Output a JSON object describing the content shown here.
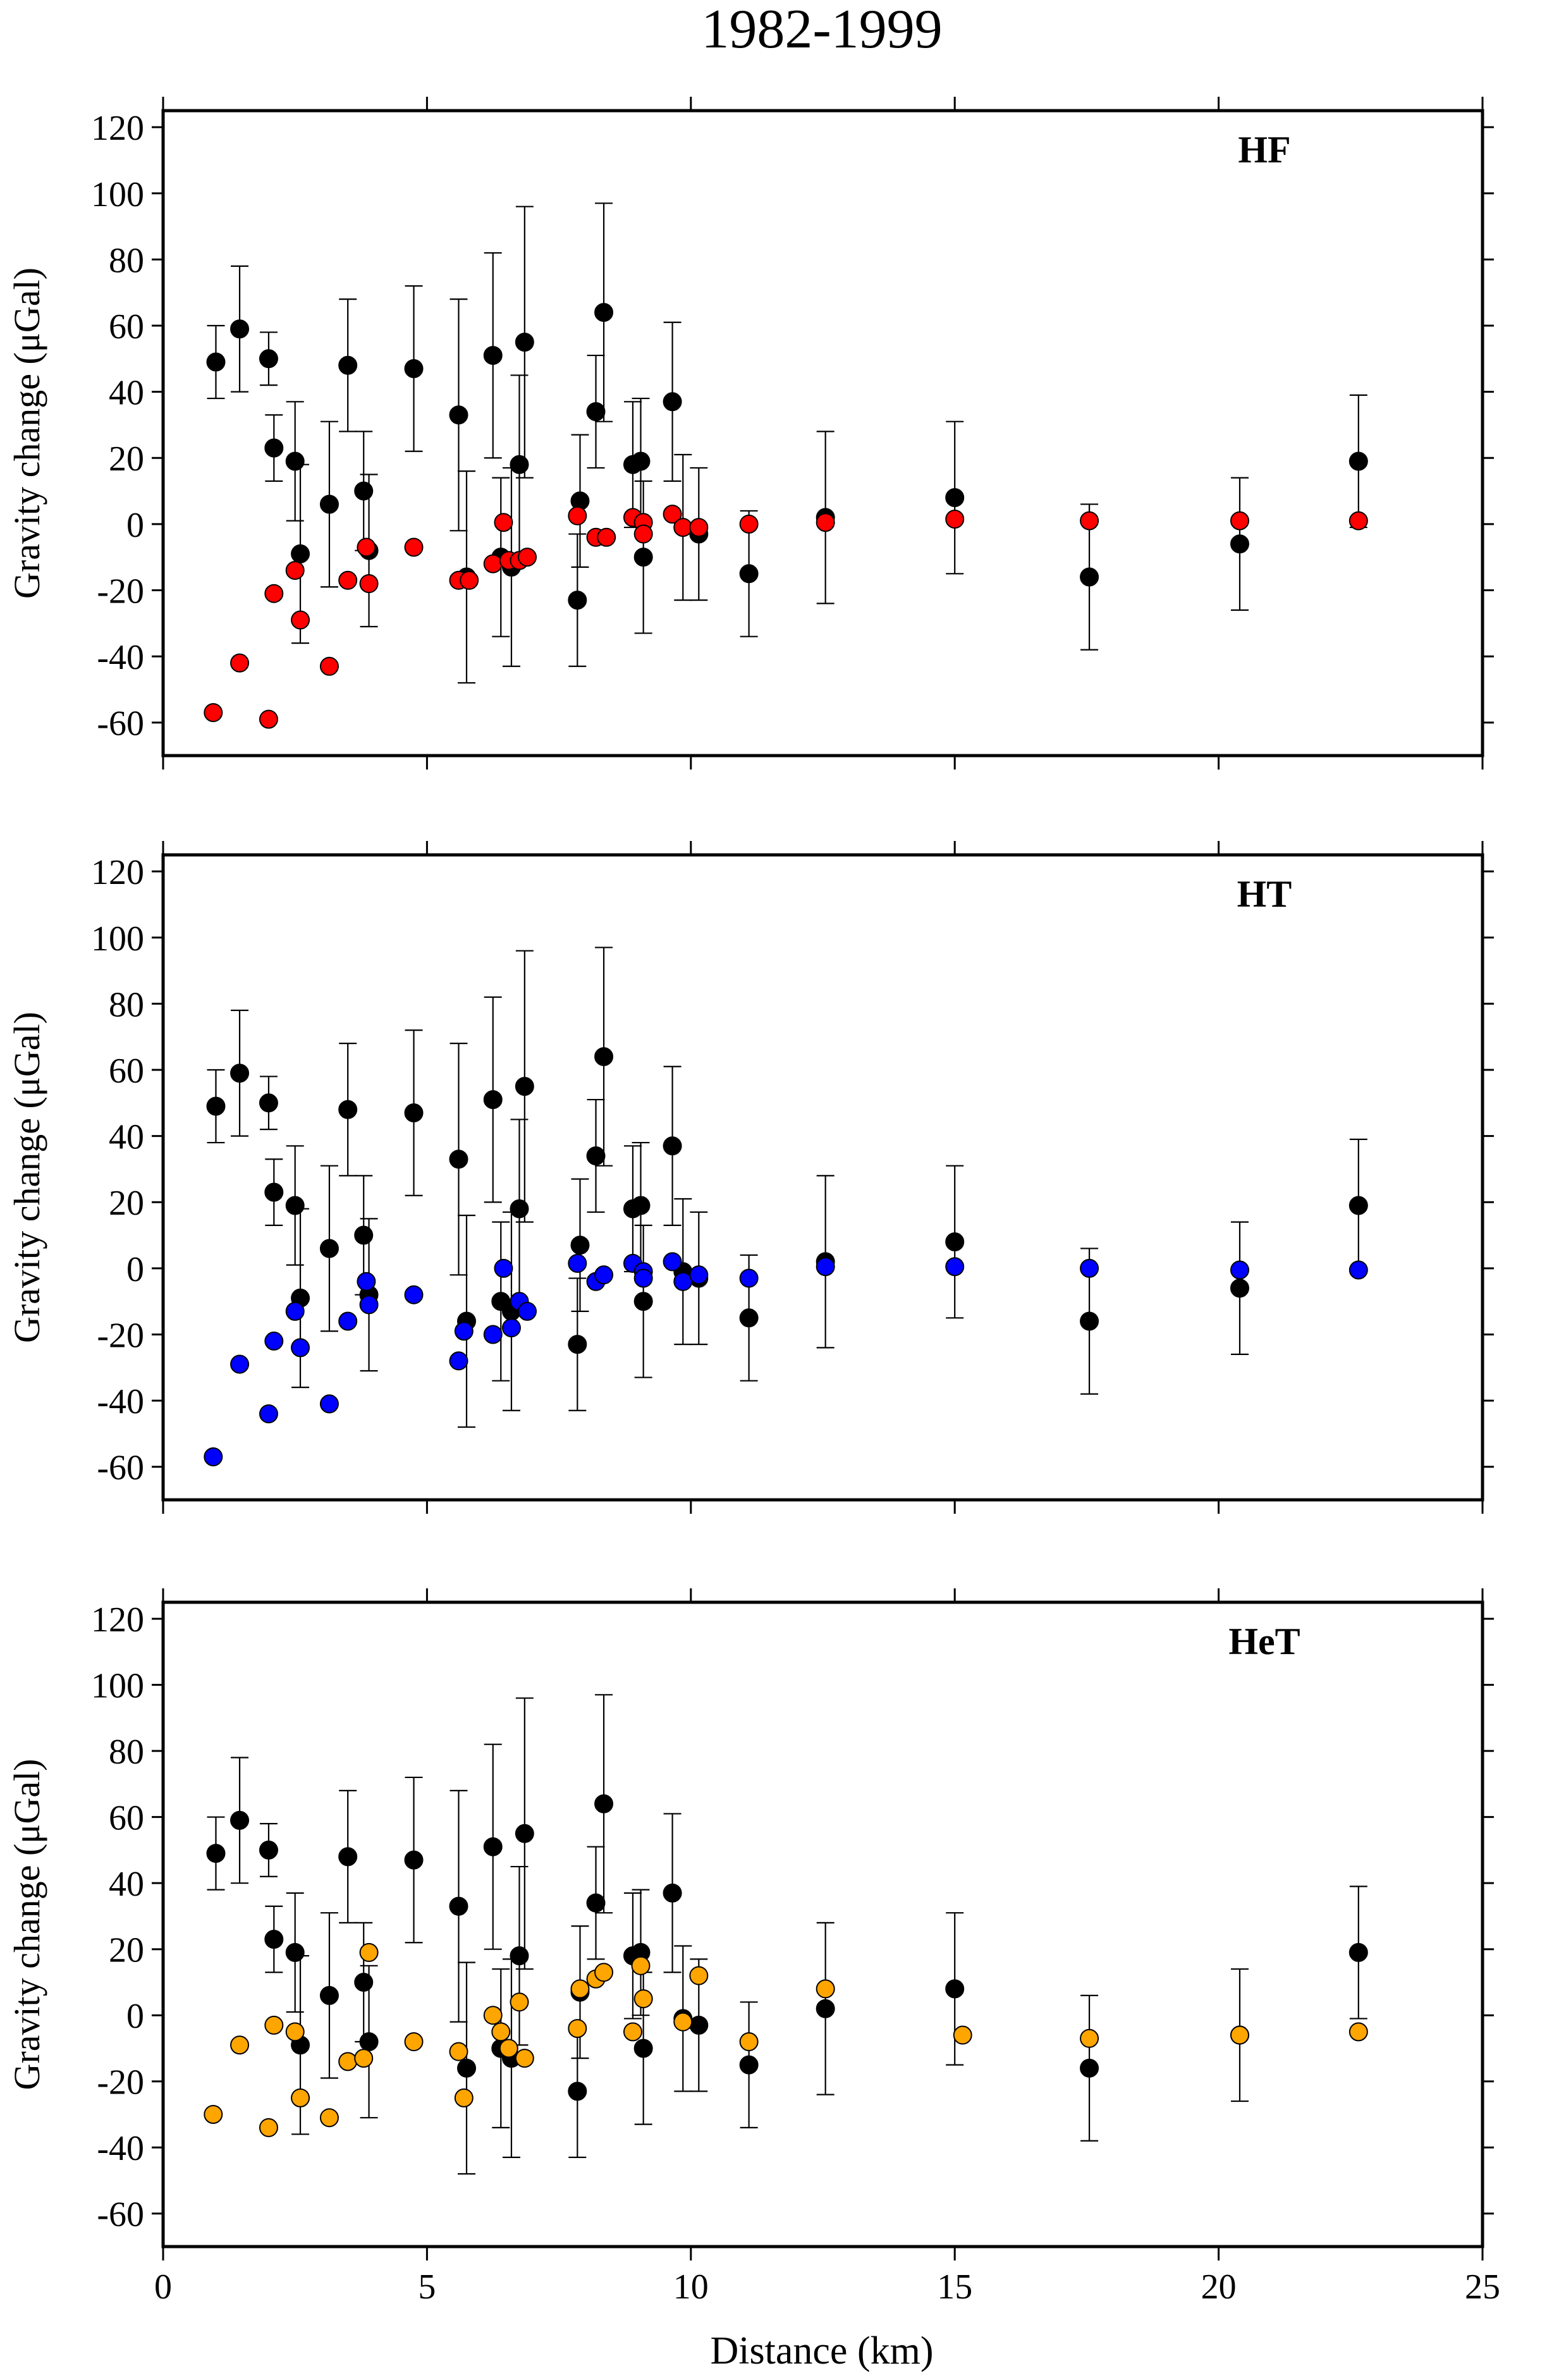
{
  "figure_title": "1982-1999",
  "colors": {
    "observed": "#000000",
    "HF": "#ff0000",
    "HT": "#0000ff",
    "HeT": "#ffa500"
  },
  "chart_data": {
    "type": "scatter",
    "title": "1982-1999",
    "xlabel": "Distance (km)",
    "ylabel": "Gravity change (μGal)",
    "xlim": [
      0,
      25
    ],
    "ylim": [
      -70,
      125
    ],
    "x_ticks": [
      0,
      5,
      10,
      15,
      20,
      25
    ],
    "y_ticks": [
      -60,
      -40,
      -20,
      0,
      20,
      40,
      60,
      80,
      100,
      120
    ],
    "grid": false,
    "observed": [
      {
        "x": 1.0,
        "y": 49,
        "lo": 38,
        "hi": 60
      },
      {
        "x": 1.45,
        "y": 59,
        "lo": 40,
        "hi": 78
      },
      {
        "x": 2.0,
        "y": 50,
        "lo": 42,
        "hi": 58
      },
      {
        "x": 2.1,
        "y": 23,
        "lo": 13,
        "hi": 33
      },
      {
        "x": 2.5,
        "y": 19,
        "lo": 1,
        "hi": 37
      },
      {
        "x": 2.6,
        "y": -9,
        "lo": -36,
        "hi": 18
      },
      {
        "x": 3.15,
        "y": 6,
        "lo": -19,
        "hi": 31
      },
      {
        "x": 3.5,
        "y": 48,
        "lo": 28,
        "hi": 68
      },
      {
        "x": 3.8,
        "y": 10,
        "lo": -8,
        "hi": 28
      },
      {
        "x": 3.9,
        "y": -8,
        "lo": -31,
        "hi": 15
      },
      {
        "x": 4.75,
        "y": 47,
        "lo": 22,
        "hi": 72
      },
      {
        "x": 5.6,
        "y": 33,
        "lo": -2,
        "hi": 68
      },
      {
        "x": 5.75,
        "y": -16,
        "lo": -48,
        "hi": 16
      },
      {
        "x": 6.25,
        "y": 51,
        "lo": 20,
        "hi": 82
      },
      {
        "x": 6.4,
        "y": -10,
        "lo": -34,
        "hi": 14
      },
      {
        "x": 6.6,
        "y": -13,
        "lo": -43,
        "hi": 17
      },
      {
        "x": 6.75,
        "y": 18,
        "lo": -9,
        "hi": 45
      },
      {
        "x": 6.85,
        "y": 55,
        "lo": 14,
        "hi": 96
      },
      {
        "x": 7.85,
        "y": -23,
        "lo": -43,
        "hi": -3
      },
      {
        "x": 7.9,
        "y": 7,
        "lo": -13,
        "hi": 27
      },
      {
        "x": 8.2,
        "y": 34,
        "lo": 17,
        "hi": 51
      },
      {
        "x": 8.35,
        "y": 64,
        "lo": 31,
        "hi": 97
      },
      {
        "x": 8.9,
        "y": 18,
        "lo": -1,
        "hi": 37
      },
      {
        "x": 9.05,
        "y": 19,
        "lo": 0,
        "hi": 38
      },
      {
        "x": 9.1,
        "y": -10,
        "lo": -33,
        "hi": 13
      },
      {
        "x": 9.65,
        "y": 37,
        "lo": 13,
        "hi": 61
      },
      {
        "x": 9.85,
        "y": -1,
        "lo": -23,
        "hi": 21
      },
      {
        "x": 10.15,
        "y": -3,
        "lo": -23,
        "hi": 17
      },
      {
        "x": 11.1,
        "y": -15,
        "lo": -34,
        "hi": 4
      },
      {
        "x": 12.55,
        "y": 2,
        "lo": -24,
        "hi": 28
      },
      {
        "x": 15.0,
        "y": 8,
        "lo": -15,
        "hi": 31
      },
      {
        "x": 17.55,
        "y": -16,
        "lo": -38,
        "hi": 6
      },
      {
        "x": 20.4,
        "y": -6,
        "lo": -26,
        "hi": 14
      },
      {
        "x": 22.65,
        "y": 19,
        "lo": -1,
        "hi": 39
      }
    ],
    "panels": [
      {
        "label": "HF",
        "color": "#ff0000",
        "points": [
          {
            "x": 0.95,
            "y": -57
          },
          {
            "x": 1.45,
            "y": -42
          },
          {
            "x": 2.0,
            "y": -59
          },
          {
            "x": 2.1,
            "y": -21
          },
          {
            "x": 2.5,
            "y": -14
          },
          {
            "x": 2.6,
            "y": -29
          },
          {
            "x": 3.15,
            "y": -43
          },
          {
            "x": 3.5,
            "y": -17
          },
          {
            "x": 3.85,
            "y": -7
          },
          {
            "x": 3.9,
            "y": -18
          },
          {
            "x": 4.75,
            "y": -7
          },
          {
            "x": 5.6,
            "y": -17
          },
          {
            "x": 5.8,
            "y": -17
          },
          {
            "x": 6.25,
            "y": -12
          },
          {
            "x": 6.45,
            "y": 0.5
          },
          {
            "x": 6.55,
            "y": -11
          },
          {
            "x": 6.75,
            "y": -11
          },
          {
            "x": 6.9,
            "y": -10
          },
          {
            "x": 7.85,
            "y": 2.5
          },
          {
            "x": 8.2,
            "y": -4
          },
          {
            "x": 8.4,
            "y": -4
          },
          {
            "x": 8.9,
            "y": 2
          },
          {
            "x": 9.1,
            "y": 0.5
          },
          {
            "x": 9.1,
            "y": -3
          },
          {
            "x": 9.65,
            "y": 3
          },
          {
            "x": 9.85,
            "y": -1
          },
          {
            "x": 10.15,
            "y": -1
          },
          {
            "x": 11.1,
            "y": 0
          },
          {
            "x": 12.55,
            "y": 0.5
          },
          {
            "x": 15.0,
            "y": 1.5
          },
          {
            "x": 17.55,
            "y": 1
          },
          {
            "x": 20.4,
            "y": 1
          },
          {
            "x": 22.65,
            "y": 1
          }
        ]
      },
      {
        "label": "HT",
        "color": "#0000ff",
        "points": [
          {
            "x": 0.95,
            "y": -57
          },
          {
            "x": 1.45,
            "y": -29
          },
          {
            "x": 2.0,
            "y": -44
          },
          {
            "x": 2.1,
            "y": -22
          },
          {
            "x": 2.5,
            "y": -13
          },
          {
            "x": 2.6,
            "y": -24
          },
          {
            "x": 3.15,
            "y": -41
          },
          {
            "x": 3.5,
            "y": -16
          },
          {
            "x": 3.85,
            "y": -4
          },
          {
            "x": 3.9,
            "y": -11
          },
          {
            "x": 4.75,
            "y": -8
          },
          {
            "x": 5.6,
            "y": -28
          },
          {
            "x": 5.7,
            "y": -19
          },
          {
            "x": 6.25,
            "y": -20
          },
          {
            "x": 6.45,
            "y": 0
          },
          {
            "x": 6.6,
            "y": -18
          },
          {
            "x": 6.75,
            "y": -10
          },
          {
            "x": 6.9,
            "y": -13
          },
          {
            "x": 7.85,
            "y": 1.5
          },
          {
            "x": 8.2,
            "y": -4
          },
          {
            "x": 8.35,
            "y": -2
          },
          {
            "x": 8.9,
            "y": 1.5
          },
          {
            "x": 9.1,
            "y": -1
          },
          {
            "x": 9.1,
            "y": -3
          },
          {
            "x": 9.65,
            "y": 2
          },
          {
            "x": 9.85,
            "y": -4
          },
          {
            "x": 10.15,
            "y": -2
          },
          {
            "x": 11.1,
            "y": -3
          },
          {
            "x": 12.55,
            "y": 0.5
          },
          {
            "x": 15.0,
            "y": 0.5
          },
          {
            "x": 17.55,
            "y": 0
          },
          {
            "x": 20.4,
            "y": -0.5
          },
          {
            "x": 22.65,
            "y": -0.5
          }
        ]
      },
      {
        "label": "HeT",
        "color": "#ffa500",
        "points": [
          {
            "x": 0.95,
            "y": -30
          },
          {
            "x": 1.45,
            "y": -9
          },
          {
            "x": 2.0,
            "y": -34
          },
          {
            "x": 2.1,
            "y": -3
          },
          {
            "x": 2.5,
            "y": -5
          },
          {
            "x": 2.6,
            "y": -25
          },
          {
            "x": 3.15,
            "y": -31
          },
          {
            "x": 3.5,
            "y": -14
          },
          {
            "x": 3.8,
            "y": -13
          },
          {
            "x": 3.9,
            "y": 19
          },
          {
            "x": 4.75,
            "y": -8
          },
          {
            "x": 5.6,
            "y": -11
          },
          {
            "x": 5.7,
            "y": -25
          },
          {
            "x": 6.25,
            "y": 0
          },
          {
            "x": 6.4,
            "y": -5
          },
          {
            "x": 6.55,
            "y": -10
          },
          {
            "x": 6.75,
            "y": 4
          },
          {
            "x": 6.85,
            "y": -13
          },
          {
            "x": 7.85,
            "y": -4
          },
          {
            "x": 7.9,
            "y": 8
          },
          {
            "x": 8.2,
            "y": 11
          },
          {
            "x": 8.35,
            "y": 13
          },
          {
            "x": 8.9,
            "y": -5
          },
          {
            "x": 9.05,
            "y": 15
          },
          {
            "x": 9.1,
            "y": 5
          },
          {
            "x": 9.85,
            "y": -2
          },
          {
            "x": 10.15,
            "y": 12
          },
          {
            "x": 11.1,
            "y": -8
          },
          {
            "x": 12.55,
            "y": 8
          },
          {
            "x": 15.15,
            "y": -6
          },
          {
            "x": 17.55,
            "y": -7
          },
          {
            "x": 20.4,
            "y": -6
          },
          {
            "x": 22.65,
            "y": -5
          }
        ]
      }
    ]
  }
}
